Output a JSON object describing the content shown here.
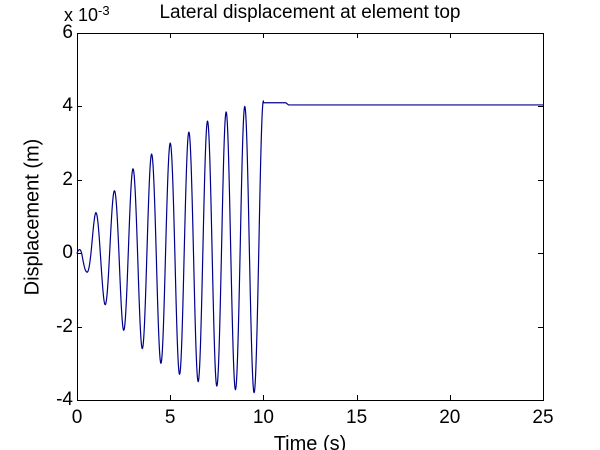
{
  "figure": {
    "title": "Lateral displacement at element top",
    "xlabel": "Time (s)",
    "ylabel": "Displacement (m)",
    "y_scale_label": {
      "base": "x 10",
      "exponent": "-3"
    }
  },
  "chart_data": {
    "type": "line",
    "title": "Lateral displacement at element top",
    "xlabel": "Time (s)",
    "ylabel": "Displacement (m)",
    "y_scale_factor": 0.001,
    "y_scale_factor_label": "x 10^-3",
    "xlim": [
      0,
      25
    ],
    "ylim_scaled": [
      -4,
      6
    ],
    "xticks": [
      0,
      5,
      10,
      15,
      20,
      25
    ],
    "yticks": [
      -4,
      -2,
      0,
      2,
      4,
      6
    ],
    "grid": false,
    "legend": null,
    "line_color": "#00008B",
    "axes_color": "#000000",
    "background_color": "#FFFFFF",
    "series": [
      {
        "name": "lateral displacement at element top",
        "description": "Oscillation of growing amplitude (period 1 s) from t=0 to t=10 s, then constant steady value",
        "peaks": [
          [
            1,
            1.1
          ],
          [
            2,
            1.7
          ],
          [
            3,
            2.3
          ],
          [
            4,
            2.7
          ],
          [
            5,
            3.0
          ],
          [
            6,
            3.3
          ],
          [
            7,
            3.6
          ],
          [
            8,
            3.85
          ],
          [
            9,
            4.0
          ],
          [
            10,
            4.15
          ]
        ],
        "troughs": [
          [
            0.5,
            -0.5
          ],
          [
            1.5,
            -1.4
          ],
          [
            2.5,
            -2.1
          ],
          [
            3.5,
            -2.6
          ],
          [
            4.5,
            -3.0
          ],
          [
            5.5,
            -3.3
          ],
          [
            6.5,
            -3.5
          ],
          [
            7.5,
            -3.62
          ],
          [
            8.5,
            -3.72
          ],
          [
            9.5,
            -3.8
          ]
        ],
        "steady_state_value": 4.04,
        "waveform": {
          "period_s": 1.0,
          "phase_s": 0.75,
          "oscillation_window_s": [
            0,
            10
          ],
          "sample_step_s": 0.02,
          "envelope_positive": [
            [
              0,
              0
            ],
            [
              1,
              1.1
            ],
            [
              2,
              1.7
            ],
            [
              3,
              2.3
            ],
            [
              4,
              2.7
            ],
            [
              5,
              3.0
            ],
            [
              6,
              3.3
            ],
            [
              7,
              3.6
            ],
            [
              8,
              3.85
            ],
            [
              9,
              4.0
            ],
            [
              10,
              4.15
            ]
          ],
          "envelope_negative_magnitude": [
            [
              0,
              0.35
            ],
            [
              0.5,
              0.5
            ],
            [
              1.5,
              1.4
            ],
            [
              2.5,
              2.1
            ],
            [
              3.5,
              2.6
            ],
            [
              4.5,
              3.0
            ],
            [
              5.5,
              3.3
            ],
            [
              6.5,
              3.5
            ],
            [
              7.5,
              3.62
            ],
            [
              8.5,
              3.72
            ],
            [
              9.5,
              3.8
            ],
            [
              10,
              3.85
            ]
          ],
          "steady_segment": [
            [
              10,
              4.1
            ],
            [
              11.2,
              4.1
            ],
            [
              11.35,
              4.04
            ],
            [
              25,
              4.04
            ]
          ]
        }
      }
    ]
  }
}
